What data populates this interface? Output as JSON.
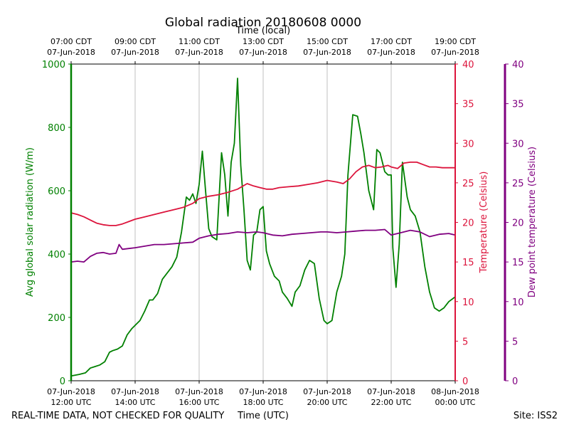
{
  "chart_data": {
    "type": "line",
    "title": "Global radiation 20180608 0000",
    "top_axis_label": "Time (local)",
    "xlabel": "Time (UTC)",
    "footer_left": "REAL-TIME DATA, NOT CHECKED FOR QUALITY",
    "footer_right": "Site: ISS2",
    "x_range_hours": [
      12,
      24
    ],
    "bottom_ticks": [
      {
        "hour": 12,
        "line1": "07-Jun-2018",
        "line2": "12:00 UTC"
      },
      {
        "hour": 14,
        "line1": "07-Jun-2018",
        "line2": "14:00 UTC"
      },
      {
        "hour": 16,
        "line1": "07-Jun-2018",
        "line2": "16:00 UTC"
      },
      {
        "hour": 18,
        "line1": "07-Jun-2018",
        "line2": "18:00 UTC"
      },
      {
        "hour": 20,
        "line1": "07-Jun-2018",
        "line2": "20:00 UTC"
      },
      {
        "hour": 22,
        "line1": "07-Jun-2018",
        "line2": "22:00 UTC"
      },
      {
        "hour": 24,
        "line1": "08-Jun-2018",
        "line2": "00:00 UTC"
      }
    ],
    "top_ticks": [
      {
        "hour": 12,
        "line1": "07:00 CDT",
        "line2": "07-Jun-2018"
      },
      {
        "hour": 14,
        "line1": "09:00 CDT",
        "line2": "07-Jun-2018"
      },
      {
        "hour": 16,
        "line1": "11:00 CDT",
        "line2": "07-Jun-2018"
      },
      {
        "hour": 18,
        "line1": "13:00 CDT",
        "line2": "07-Jun-2018"
      },
      {
        "hour": 20,
        "line1": "15:00 CDT",
        "line2": "07-Jun-2018"
      },
      {
        "hour": 22,
        "line1": "17:00 CDT",
        "line2": "07-Jun-2018"
      },
      {
        "hour": 24,
        "line1": "19:00 CDT",
        "line2": "07-Jun-2018"
      }
    ],
    "axes": {
      "left": {
        "label": "Avg global solar radiation (W/m)",
        "ylim": [
          0,
          1000
        ],
        "ticks": [
          0,
          200,
          400,
          600,
          800,
          1000
        ],
        "color": "#008000"
      },
      "right": {
        "label": "Temperature (Celsius)",
        "ylim": [
          0,
          40
        ],
        "ticks": [
          0,
          5,
          10,
          15,
          20,
          25,
          30,
          35,
          40
        ],
        "color": "#dc143c"
      },
      "right2": {
        "label": "Dew point temperature (Celsius)",
        "ylim": [
          0,
          40
        ],
        "ticks": [
          0,
          5,
          10,
          15,
          20,
          25,
          30,
          35,
          40
        ],
        "color": "#800080"
      }
    },
    "series": [
      {
        "name": "Avg global solar radiation",
        "axis": "left",
        "color": "#008000",
        "x": [
          12.0,
          12.25,
          12.45,
          12.6,
          12.75,
          12.9,
          13.05,
          13.2,
          13.3,
          13.45,
          13.6,
          13.75,
          13.9,
          14.0,
          14.15,
          14.3,
          14.45,
          14.55,
          14.7,
          14.85,
          15.0,
          15.15,
          15.3,
          15.45,
          15.6,
          15.7,
          15.8,
          15.9,
          16.0,
          16.1,
          16.2,
          16.3,
          16.4,
          16.55,
          16.7,
          16.8,
          16.9,
          17.0,
          17.1,
          17.2,
          17.3,
          17.4,
          17.5,
          17.6,
          17.7,
          17.8,
          17.9,
          18.0,
          18.1,
          18.2,
          18.35,
          18.5,
          18.6,
          18.75,
          18.9,
          19.0,
          19.15,
          19.3,
          19.45,
          19.6,
          19.75,
          19.9,
          20.0,
          20.15,
          20.3,
          20.45,
          20.55,
          20.65,
          20.8,
          20.95,
          21.05,
          21.15,
          21.3,
          21.45,
          21.55,
          21.65,
          21.8,
          21.9,
          22.0,
          22.05,
          22.15,
          22.25,
          22.35,
          22.5,
          22.6,
          22.75,
          22.9,
          23.05,
          23.2,
          23.35,
          23.5,
          23.65,
          23.8,
          24.0
        ],
        "y": [
          15,
          20,
          25,
          40,
          45,
          50,
          60,
          90,
          95,
          100,
          110,
          145,
          165,
          175,
          190,
          220,
          255,
          255,
          275,
          320,
          340,
          360,
          390,
          470,
          580,
          570,
          590,
          560,
          620,
          725,
          600,
          480,
          455,
          445,
          720,
          650,
          520,
          690,
          750,
          955,
          680,
          540,
          380,
          350,
          460,
          470,
          540,
          550,
          410,
          370,
          330,
          315,
          280,
          260,
          235,
          280,
          300,
          350,
          380,
          370,
          260,
          190,
          180,
          190,
          280,
          330,
          400,
          650,
          840,
          835,
          780,
          720,
          600,
          540,
          730,
          720,
          660,
          650,
          650,
          420,
          295,
          430,
          690,
          580,
          540,
          520,
          470,
          360,
          280,
          230,
          220,
          230,
          250,
          265
        ]
      },
      {
        "name": "Temperature",
        "axis": "right",
        "color": "#dc143c",
        "x": [
          12.0,
          12.2,
          12.4,
          12.6,
          12.8,
          13.0,
          13.2,
          13.4,
          13.6,
          13.8,
          14.0,
          14.3,
          14.6,
          14.9,
          15.2,
          15.5,
          15.8,
          16.0,
          16.3,
          16.6,
          16.9,
          17.2,
          17.5,
          17.7,
          17.9,
          18.1,
          18.3,
          18.5,
          18.8,
          19.1,
          19.4,
          19.7,
          20.0,
          20.3,
          20.5,
          20.7,
          20.9,
          21.1,
          21.3,
          21.5,
          21.7,
          21.9,
          22.0,
          22.2,
          22.4,
          22.6,
          22.8,
          23.0,
          23.2,
          23.4,
          23.6,
          23.8,
          24.0
        ],
        "y": [
          21.2,
          21.0,
          20.7,
          20.3,
          19.9,
          19.7,
          19.6,
          19.6,
          19.8,
          20.1,
          20.4,
          20.7,
          21.0,
          21.3,
          21.6,
          21.9,
          22.4,
          23.0,
          23.3,
          23.5,
          23.8,
          24.2,
          24.9,
          24.6,
          24.4,
          24.2,
          24.2,
          24.4,
          24.5,
          24.6,
          24.8,
          25.0,
          25.3,
          25.1,
          24.9,
          25.5,
          26.4,
          27.0,
          27.2,
          26.9,
          27.0,
          27.2,
          27.0,
          26.8,
          27.5,
          27.6,
          27.6,
          27.3,
          27.0,
          27.0,
          26.9,
          26.9,
          26.9
        ]
      },
      {
        "name": "Dew point temperature",
        "axis": "right2",
        "color": "#800080",
        "x": [
          12.0,
          12.2,
          12.4,
          12.6,
          12.8,
          13.0,
          13.2,
          13.4,
          13.5,
          13.6,
          13.8,
          14.0,
          14.3,
          14.6,
          14.9,
          15.2,
          15.5,
          15.8,
          16.0,
          16.3,
          16.6,
          16.9,
          17.2,
          17.5,
          17.8,
          18.0,
          18.3,
          18.6,
          18.9,
          19.2,
          19.5,
          19.8,
          20.0,
          20.3,
          20.6,
          20.9,
          21.2,
          21.5,
          21.8,
          22.0,
          22.3,
          22.6,
          22.9,
          23.2,
          23.5,
          23.8,
          24.0
        ],
        "y": [
          15.0,
          15.1,
          15.0,
          15.7,
          16.1,
          16.2,
          16.0,
          16.1,
          17.2,
          16.6,
          16.7,
          16.8,
          17.0,
          17.2,
          17.2,
          17.3,
          17.4,
          17.5,
          18.0,
          18.3,
          18.5,
          18.6,
          18.8,
          18.7,
          18.8,
          18.7,
          18.4,
          18.3,
          18.5,
          18.6,
          18.7,
          18.8,
          18.8,
          18.7,
          18.8,
          18.9,
          19.0,
          19.0,
          19.1,
          18.4,
          18.7,
          19.0,
          18.8,
          18.2,
          18.5,
          18.6,
          18.4
        ]
      }
    ]
  }
}
